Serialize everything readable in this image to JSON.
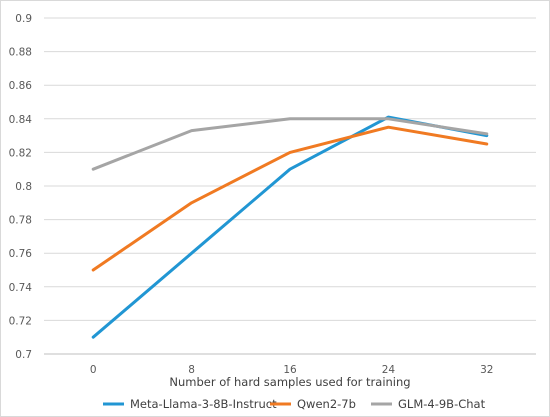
{
  "chart_data": {
    "type": "line",
    "title": "",
    "xlabel": "Number of hard samples used for training",
    "ylabel": "",
    "categories": [
      "0",
      "8",
      "16",
      "24",
      "32"
    ],
    "ylim": [
      0.7,
      0.9
    ],
    "yticks": [
      "0.7",
      "0.72",
      "0.74",
      "0.76",
      "0.78",
      "0.8",
      "0.82",
      "0.84",
      "0.86",
      "0.88",
      "0.9"
    ],
    "grid": true,
    "legend_position": "bottom",
    "series": [
      {
        "name": "Meta-Llama-3-8B-Instruct",
        "color": "#2196d3",
        "values": [
          0.71,
          0.76,
          0.81,
          0.841,
          0.83
        ]
      },
      {
        "name": "Qwen2-7b",
        "color": "#f07a22",
        "values": [
          0.75,
          0.79,
          0.82,
          0.835,
          0.825
        ]
      },
      {
        "name": "GLM-4-9B-Chat",
        "color": "#a5a5a5",
        "values": [
          0.81,
          0.833,
          0.84,
          0.84,
          0.831
        ]
      }
    ]
  }
}
